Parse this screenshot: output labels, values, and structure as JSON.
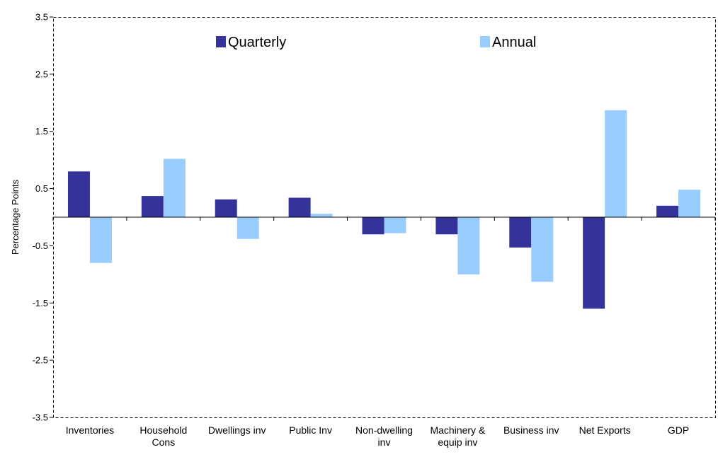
{
  "chart_data": {
    "type": "bar",
    "title": "",
    "xlabel": "",
    "ylabel": "Percentage Points",
    "ylim": [
      -3.5,
      3.5
    ],
    "yticks": [
      "3.5",
      "2.5",
      "1.5",
      "0.5",
      "-0.5",
      "-1.5",
      "-2.5",
      "-3.5"
    ],
    "ytick_values": [
      3.5,
      2.5,
      1.5,
      0.5,
      -0.5,
      -1.5,
      -2.5,
      -3.5
    ],
    "grid": false,
    "legend_position": "top-center",
    "categories": [
      [
        "Inventories"
      ],
      [
        "Household",
        "Cons"
      ],
      [
        "Dwellings inv"
      ],
      [
        "Public Inv"
      ],
      [
        "Non-dwelling",
        "inv"
      ],
      [
        "Machinery &",
        "equip inv"
      ],
      [
        "Business inv"
      ],
      [
        "Net Exports"
      ],
      [
        "GDP"
      ]
    ],
    "series": [
      {
        "name": "Quarterly",
        "color": "#333399",
        "values": [
          0.8,
          0.37,
          0.31,
          0.34,
          -0.3,
          -0.3,
          -0.53,
          -1.6,
          0.2
        ]
      },
      {
        "name": "Annual",
        "color": "#99CCFF",
        "values": [
          -0.8,
          1.02,
          -0.38,
          0.06,
          -0.28,
          -1.0,
          -1.13,
          1.87,
          0.48
        ]
      }
    ]
  }
}
